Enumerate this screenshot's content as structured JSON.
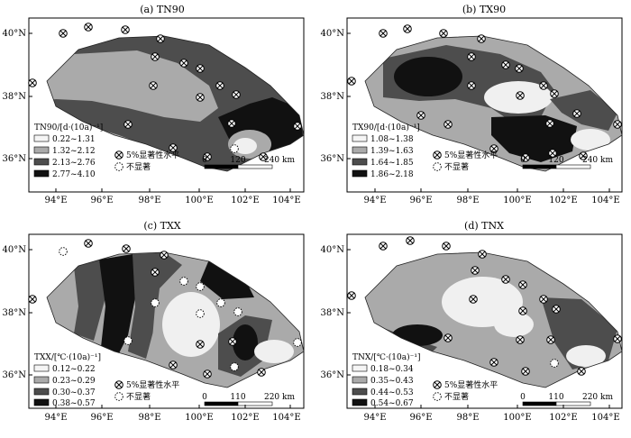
{
  "axes": {
    "lat_labels": [
      "40°N",
      "38°N",
      "36°N"
    ],
    "lon_labels": [
      "94°E",
      "96°E",
      "98°E",
      "100°E",
      "102°E",
      "104°E"
    ]
  },
  "panels": [
    {
      "title": "(a) TN90",
      "legend_title": "TN90/[d·(10a)⁻¹]",
      "classes": [
        "0.22~1.31",
        "1.32~2.12",
        "2.13~2.76",
        "2.77~4.10"
      ],
      "sig_label": "5%显著性水平",
      "nonsig_label": "不显著",
      "scale": [
        "0",
        "120",
        "240 km"
      ]
    },
    {
      "title": "(b) TX90",
      "legend_title": "TX90/[d·(10a)⁻¹]",
      "classes": [
        "1.08~1.38",
        "1.39~1.63",
        "1.64~1.85",
        "1.86~2.18"
      ],
      "sig_label": "5%显著性水平",
      "nonsig_label": "不显著",
      "scale": [
        "0",
        "120",
        "240 km"
      ]
    },
    {
      "title": "(c) TXX",
      "legend_title": "TXX/[℃·(10a)⁻¹]",
      "classes": [
        "0.12~0.22",
        "0.23~0.29",
        "0.30~0.37",
        "0.38~0.57"
      ],
      "sig_label": "5%显著性水平",
      "nonsig_label": "不显著",
      "scale": [
        "0",
        "110",
        "220 km"
      ]
    },
    {
      "title": "(d) TNX",
      "legend_title": "TNX/[℃·(10a)⁻¹]",
      "classes": [
        "0.18~0.34",
        "0.35~0.43",
        "0.44~0.53",
        "0.54~0.67"
      ],
      "sig_label": "5%显著性水平",
      "nonsig_label": "不显著",
      "scale": [
        "0",
        "110",
        "220 km"
      ]
    }
  ]
}
